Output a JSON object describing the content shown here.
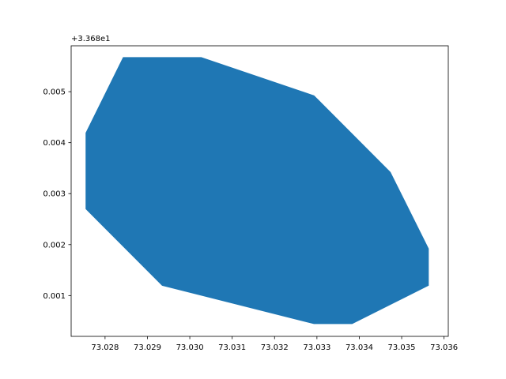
{
  "chart_data": {
    "type": "area",
    "title": "",
    "xlabel": "",
    "ylabel": "",
    "y_offset_label": "+3.368e1",
    "xlim": [
      73.0272,
      73.0361
    ],
    "ylim": [
      0.0002,
      0.0059
    ],
    "grid": false,
    "series": [
      {
        "color": "#1f77b4",
        "polygon": [
          {
            "x": 73.02843,
            "y": 0.00567
          },
          {
            "x": 73.03027,
            "y": 0.00567
          },
          {
            "x": 73.03293,
            "y": 0.00492
          },
          {
            "x": 73.03473,
            "y": 0.00342
          },
          {
            "x": 73.03563,
            "y": 0.00192
          },
          {
            "x": 73.03563,
            "y": 0.0012
          },
          {
            "x": 73.03383,
            "y": 0.00045
          },
          {
            "x": 73.03293,
            "y": 0.00045
          },
          {
            "x": 73.02935,
            "y": 0.0012
          },
          {
            "x": 73.02755,
            "y": 0.0027
          },
          {
            "x": 73.02755,
            "y": 0.00419
          }
        ]
      }
    ],
    "x_ticks": [
      {
        "value": 73.028,
        "label": "73.028"
      },
      {
        "value": 73.029,
        "label": "73.029"
      },
      {
        "value": 73.03,
        "label": "73.030"
      },
      {
        "value": 73.031,
        "label": "73.031"
      },
      {
        "value": 73.032,
        "label": "73.032"
      },
      {
        "value": 73.033,
        "label": "73.033"
      },
      {
        "value": 73.034,
        "label": "73.034"
      },
      {
        "value": 73.035,
        "label": "73.035"
      },
      {
        "value": 73.036,
        "label": "73.036"
      }
    ],
    "y_ticks": [
      {
        "value": 0.001,
        "label": "0.001"
      },
      {
        "value": 0.002,
        "label": "0.002"
      },
      {
        "value": 0.003,
        "label": "0.003"
      },
      {
        "value": 0.004,
        "label": "0.004"
      },
      {
        "value": 0.005,
        "label": "0.005"
      }
    ]
  }
}
